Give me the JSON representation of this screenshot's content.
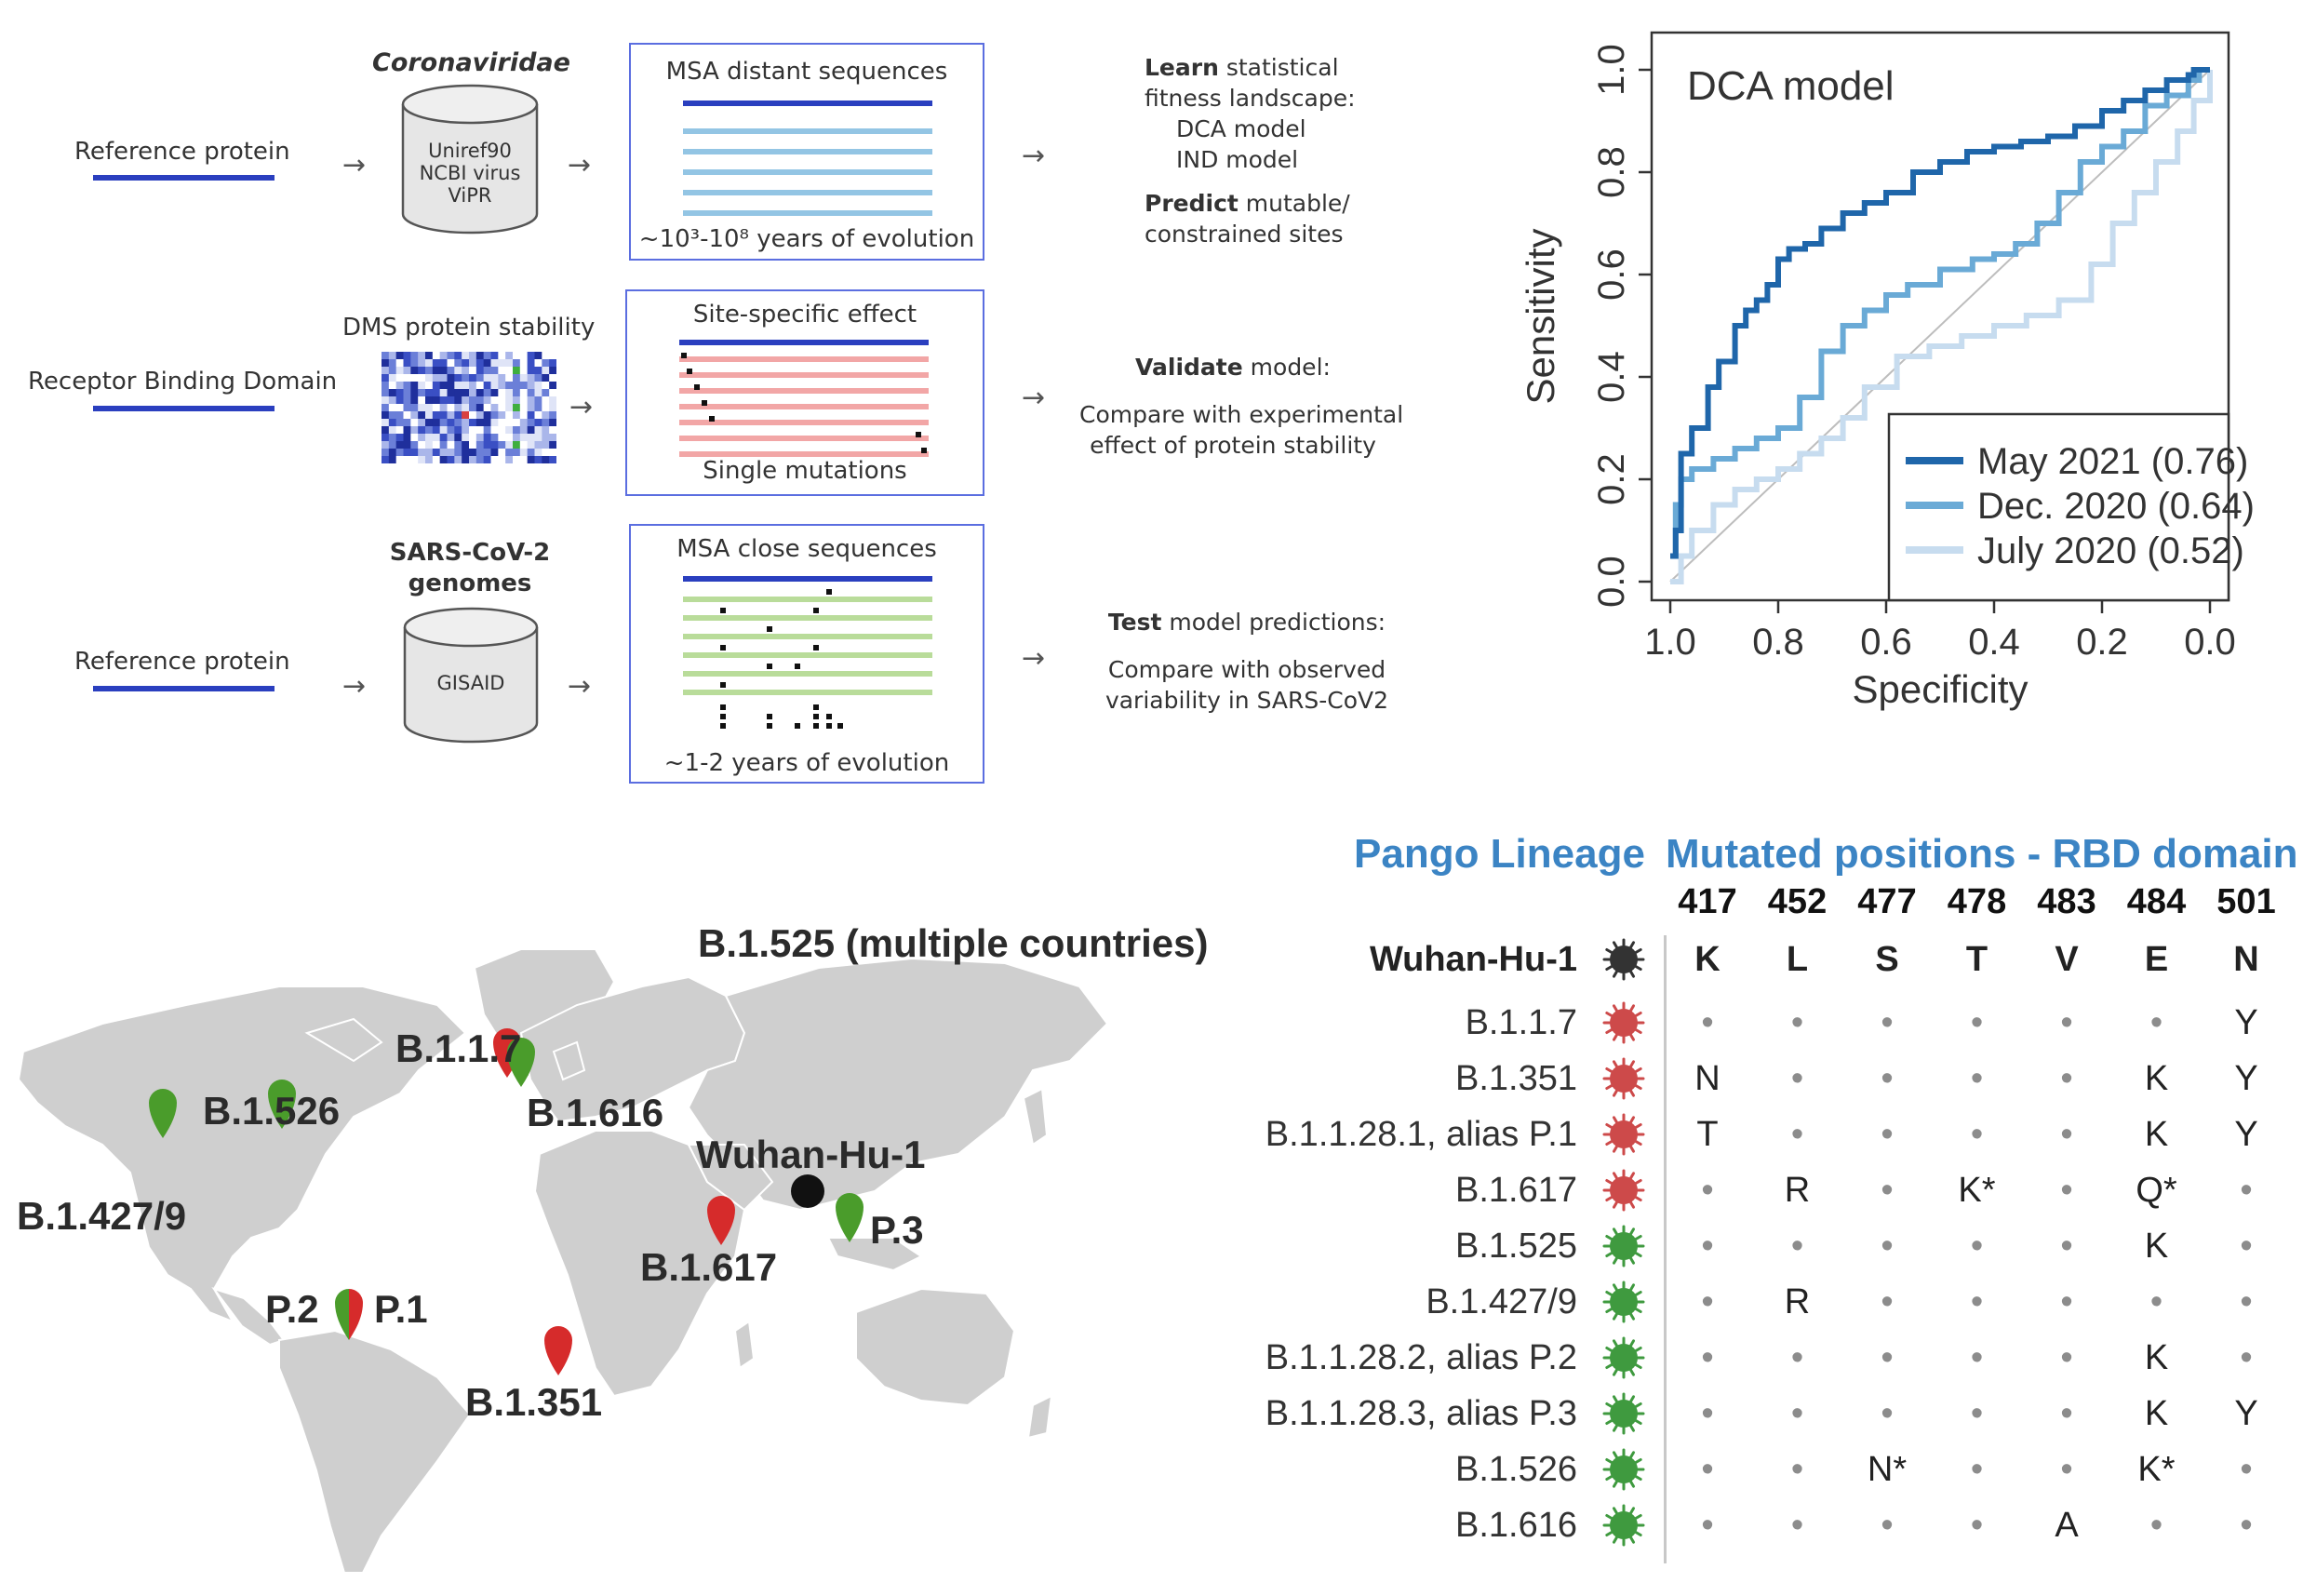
{
  "workflow": {
    "row1": {
      "input_label": "Reference protein",
      "db_title": "Coronaviridae",
      "db_lines": [
        "Uniref90",
        "NCBI virus",
        "ViPR"
      ],
      "box_title": "MSA distant sequences",
      "box_caption": "~10³-10⁸ years of evolution",
      "right_block": {
        "learn_bold": "Learn",
        "learn_rest": " statistical",
        "line2": "fitness landscape:",
        "line3": "DCA model",
        "line4": "IND  model",
        "predict_bold": "Predict",
        "predict_rest": " mutable/",
        "line6": "constrained sites"
      }
    },
    "row2": {
      "input_label": "Receptor Binding Domain",
      "heatmap_title": "DMS protein stability",
      "box_title": "Site-specific effect",
      "box_caption": "Single mutations",
      "right_block": {
        "validate_bold": "Validate",
        "validate_rest": " model:",
        "line2": "Compare with experimental",
        "line3": "effect of protein stability"
      }
    },
    "row3": {
      "input_label": "Reference protein",
      "db_title_line1": "SARS-CoV-2",
      "db_title_line2": "genomes",
      "db_label": "GISAID",
      "box_title": "MSA close sequences",
      "box_caption": "~1-2 years of evolution",
      "right_block": {
        "test_bold": "Test",
        "test_rest": " model predictions:",
        "line2": "Compare with observed",
        "line3": "variability in SARS-CoV2"
      }
    },
    "arrow_glyph": "→"
  },
  "roc": {
    "panel_title": "DCA model",
    "xlabel": "Specificity",
    "ylabel": "Sensitivity",
    "colors": {
      "may": "#1f66aa",
      "dec": "#6aaad6",
      "july": "#c7dcef",
      "diag": "#bdbdbd"
    }
  },
  "chart_data": {
    "type": "line",
    "title": "DCA model",
    "xlabel": "Specificity",
    "ylabel": "Sensitivity",
    "xlim": [
      1.0,
      0.0
    ],
    "ylim": [
      0.0,
      1.0
    ],
    "x_ticks": [
      "1.0",
      "0.8",
      "0.6",
      "0.4",
      "0.2",
      "0.0"
    ],
    "y_ticks": [
      "0.0",
      "0.2",
      "0.4",
      "0.6",
      "0.8",
      "1.0"
    ],
    "legend_position": "bottom-right",
    "series": [
      {
        "name": "May 2021 (0.76)",
        "x": [
          1.0,
          0.99,
          0.98,
          0.98,
          0.96,
          0.96,
          0.93,
          0.91,
          0.88,
          0.86,
          0.84,
          0.82,
          0.8,
          0.78,
          0.75,
          0.72,
          0.68,
          0.64,
          0.6,
          0.55,
          0.5,
          0.45,
          0.4,
          0.35,
          0.3,
          0.25,
          0.2,
          0.16,
          0.12,
          0.08,
          0.04,
          0.03,
          0.0
        ],
        "y": [
          0.05,
          0.1,
          0.2,
          0.25,
          0.28,
          0.3,
          0.38,
          0.43,
          0.5,
          0.53,
          0.55,
          0.58,
          0.63,
          0.65,
          0.66,
          0.69,
          0.72,
          0.74,
          0.76,
          0.8,
          0.82,
          0.84,
          0.85,
          0.86,
          0.87,
          0.89,
          0.92,
          0.94,
          0.96,
          0.98,
          0.99,
          1.0,
          1.0
        ]
      },
      {
        "name": "Dec. 2020 (0.64)",
        "x": [
          1.0,
          0.99,
          0.98,
          0.96,
          0.92,
          0.88,
          0.84,
          0.8,
          0.76,
          0.72,
          0.68,
          0.64,
          0.6,
          0.56,
          0.5,
          0.44,
          0.4,
          0.36,
          0.32,
          0.28,
          0.24,
          0.2,
          0.16,
          0.12,
          0.08,
          0.04,
          0.02,
          0.0
        ],
        "y": [
          0.05,
          0.15,
          0.2,
          0.22,
          0.24,
          0.26,
          0.28,
          0.3,
          0.36,
          0.45,
          0.5,
          0.53,
          0.56,
          0.58,
          0.61,
          0.63,
          0.64,
          0.66,
          0.7,
          0.76,
          0.82,
          0.85,
          0.88,
          0.93,
          0.95,
          0.98,
          1.0,
          1.0
        ]
      },
      {
        "name": "July 2020 (0.52)",
        "x": [
          1.0,
          0.98,
          0.96,
          0.92,
          0.88,
          0.84,
          0.8,
          0.76,
          0.72,
          0.68,
          0.64,
          0.58,
          0.52,
          0.46,
          0.4,
          0.34,
          0.28,
          0.22,
          0.18,
          0.14,
          0.1,
          0.06,
          0.03,
          0.0
        ],
        "y": [
          0.0,
          0.05,
          0.1,
          0.15,
          0.18,
          0.2,
          0.22,
          0.25,
          0.28,
          0.32,
          0.38,
          0.44,
          0.46,
          0.48,
          0.5,
          0.52,
          0.55,
          0.62,
          0.7,
          0.76,
          0.82,
          0.88,
          0.94,
          1.0
        ]
      }
    ]
  },
  "map": {
    "labels": {
      "b1525": "B.1.525 (multiple countries)",
      "b117": "B.1.1.7",
      "b1526": "B.1.526",
      "b1616": "B.1.616",
      "wuhan": "Wuhan-Hu-1",
      "b14279": "B.1.427/9",
      "p3": "P.3",
      "b1617": "B.1.617",
      "p2": "P.2",
      "p1": "P.1",
      "b1351": "B.1.351"
    },
    "colors": {
      "red": "#d62b2b",
      "green": "#4a9c2b",
      "land": "#cfcfcf",
      "origin": "#111111"
    }
  },
  "table": {
    "lineage_header": "Pango Lineage",
    "positions_header": "Mutated positions - RBD domain",
    "positions": [
      "417",
      "452",
      "477",
      "478",
      "483",
      "484",
      "501"
    ],
    "reference": {
      "name": "Wuhan-Hu-1",
      "residues": [
        "K",
        "L",
        "S",
        "T",
        "V",
        "E",
        "N"
      ]
    },
    "rows": [
      {
        "name": "B.1.1.7",
        "status": "red",
        "cells": [
          "•",
          "•",
          "•",
          "•",
          "•",
          "•",
          "Y"
        ]
      },
      {
        "name": "B.1.351",
        "status": "red",
        "cells": [
          "N",
          "•",
          "•",
          "•",
          "•",
          "K",
          "Y"
        ]
      },
      {
        "name": "B.1.1.28.1, alias P.1",
        "status": "red",
        "cells": [
          "T",
          "•",
          "•",
          "•",
          "•",
          "K",
          "Y"
        ]
      },
      {
        "name": "B.1.617",
        "status": "red",
        "cells": [
          "•",
          "R",
          "•",
          "K*",
          "•",
          "Q*",
          "•"
        ]
      },
      {
        "name": "B.1.525",
        "status": "green",
        "cells": [
          "•",
          "•",
          "•",
          "•",
          "•",
          "K",
          "•"
        ]
      },
      {
        "name": "B.1.427/9",
        "status": "green",
        "cells": [
          "•",
          "R",
          "•",
          "•",
          "•",
          "•",
          "•"
        ]
      },
      {
        "name": "B.1.1.28.2, alias P.2",
        "status": "green",
        "cells": [
          "•",
          "•",
          "•",
          "•",
          "•",
          "K",
          "•"
        ]
      },
      {
        "name": "B.1.1.28.3, alias P.3",
        "status": "green",
        "cells": [
          "•",
          "•",
          "•",
          "•",
          "•",
          "K",
          "Y"
        ]
      },
      {
        "name": "B.1.526",
        "status": "green",
        "cells": [
          "•",
          "•",
          "N*",
          "•",
          "•",
          "K*",
          "•"
        ]
      },
      {
        "name": "B.1.616",
        "status": "green",
        "cells": [
          "•",
          "•",
          "•",
          "•",
          "A",
          "•",
          "•"
        ]
      }
    ],
    "colors": {
      "red": "#cd4a4a",
      "green": "#3f9a3f",
      "ref": "#333333",
      "header": "#3b84c4"
    }
  }
}
